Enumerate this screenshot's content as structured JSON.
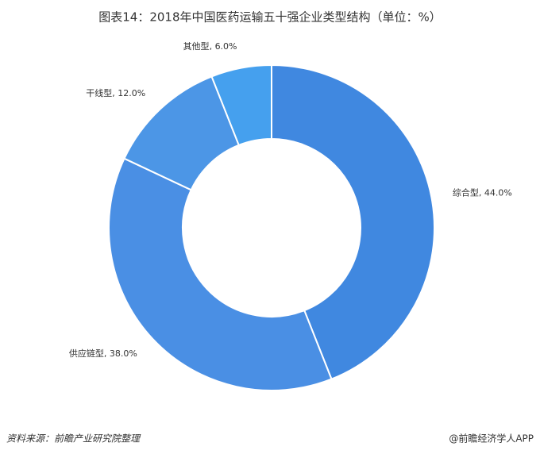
{
  "chart_data": {
    "type": "donut",
    "title": "图表14：2018年中国医药运输五十强企业类型结构（单位：%）",
    "categories": [
      "综合型",
      "供应链型",
      "干线型",
      "其他型"
    ],
    "values": [
      44.0,
      38.0,
      12.0,
      6.0
    ],
    "value_labels": [
      "44.0%",
      "38.0%",
      "12.0%",
      "6.0%"
    ],
    "colors": [
      "#4088e0",
      "#4a8fe4",
      "#4c96e6",
      "#45a0ee"
    ],
    "source": "资料来源：前瞻产业研究院整理",
    "credit": "@前瞻经济学人APP"
  }
}
